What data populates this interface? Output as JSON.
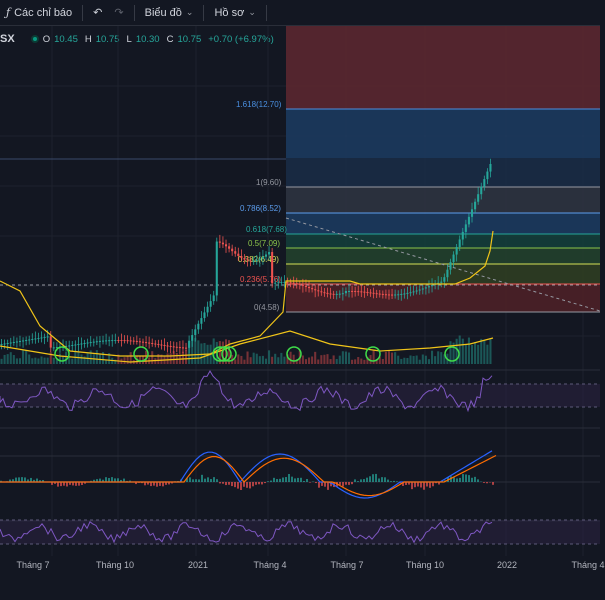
{
  "toolbar": {
    "indicators_label": "Các chỉ báo",
    "chart_label": "Biểu đồ",
    "profile_label": "Hồ sơ"
  },
  "legend": {
    "symbol": "SX",
    "o_key": "O",
    "o_val": "10.45",
    "h_key": "H",
    "h_val": "10.75",
    "l_key": "L",
    "l_val": "10.30",
    "c_key": "C",
    "c_val": "10.75",
    "change": "+0.70 (+6.97%)"
  },
  "fib_levels": [
    {
      "label": "1.618(12.70)",
      "color": "#4a90e2"
    },
    {
      "label": "1(9.60)",
      "color": "#9598a1"
    },
    {
      "label": "0.786(8.52)",
      "color": "#5c9ded"
    },
    {
      "label": "0.618(7.68)",
      "color": "#26a69a"
    },
    {
      "label": "0.5(7.09)",
      "color": "#8bc34a"
    },
    {
      "label": "0.382(6.49)",
      "color": "#d4e157"
    },
    {
      "label": "0.236(5.76)",
      "color": "#ef5350"
    },
    {
      "label": "0(4.58)",
      "color": "#9598a1"
    }
  ],
  "xaxis": {
    "labels": [
      "Tháng 7",
      "Tháng 10",
      "2021",
      "Tháng 4",
      "Tháng 7",
      "Tháng 10",
      "2022",
      "Tháng 4"
    ]
  },
  "colors": {
    "up": "#26a69a",
    "down": "#ef5350",
    "ma": "#f0c419",
    "rsi": "#7e57c2",
    "macd": "#2962ff",
    "signal": "#ff6d00"
  }
}
